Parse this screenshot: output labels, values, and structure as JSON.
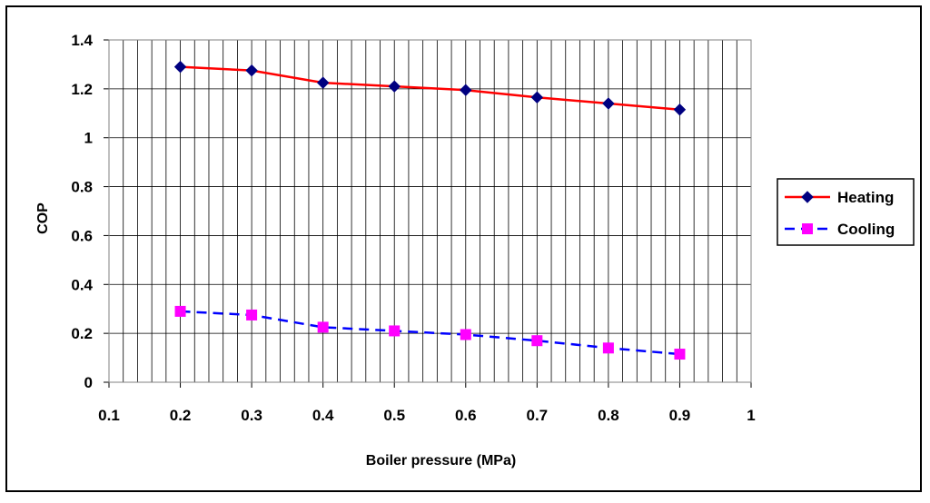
{
  "chart_data": {
    "type": "line",
    "title": "",
    "xlabel": "Boiler pressure (MPa)",
    "ylabel": "COP",
    "xlim": [
      0.1,
      1
    ],
    "ylim": [
      0,
      1.4
    ],
    "x_ticks": [
      "0.1",
      "0.2",
      "0.3",
      "0.4",
      "0.5",
      "0.6",
      "0.7",
      "0.8",
      "0.9",
      "1"
    ],
    "y_ticks": [
      "0",
      "0.2",
      "0.4",
      "0.6",
      "0.8",
      "1",
      "1.2",
      "1.4"
    ],
    "x_minor_step": 0.02,
    "y_major_step": 0.2,
    "grid": true,
    "legend_position": "right",
    "x": [
      0.2,
      0.3,
      0.4,
      0.5,
      0.6,
      0.7,
      0.8,
      0.9
    ],
    "series": [
      {
        "name": "Heating",
        "values": [
          1.29,
          1.275,
          1.225,
          1.21,
          1.195,
          1.165,
          1.14,
          1.115
        ],
        "color": "#ff0000",
        "marker_color": "#000080",
        "marker": "diamond",
        "line_style": "solid"
      },
      {
        "name": "Cooling",
        "values": [
          0.29,
          0.275,
          0.225,
          0.21,
          0.195,
          0.17,
          0.14,
          0.115
        ],
        "color": "#0000ff",
        "marker_color": "#ff00ff",
        "marker": "square",
        "line_style": "dashed"
      }
    ]
  }
}
